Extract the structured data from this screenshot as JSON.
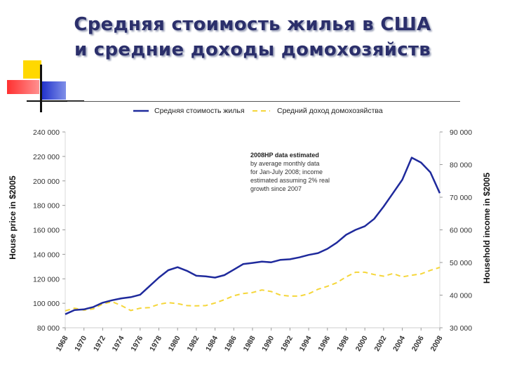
{
  "slide": {
    "title_line1": "Средняя стоимость жилья в США",
    "title_line2": "и средние доходы домохозяйств"
  },
  "colors": {
    "house_line": "#1f2a9c",
    "income_line": "#f5d63a",
    "title": "#2b2f6b",
    "deco_yellow": "#ffd800",
    "deco_red": "#ff4040",
    "deco_blue": "#2233cc"
  },
  "chart_data": {
    "type": "line",
    "title": "",
    "xlabel": "",
    "ylabel": "House price in $2005",
    "y2label": "Household income in $2005",
    "ylim": [
      80000,
      240000
    ],
    "y2lim": [
      30000,
      90000
    ],
    "yticks": [
      "80 000",
      "100 000",
      "120 000",
      "140 000",
      "160 000",
      "180 000",
      "200 000",
      "220 000",
      "240 000"
    ],
    "y2ticks": [
      "30 000",
      "40 000",
      "50 000",
      "60 000",
      "70 000",
      "80 000",
      "90 000"
    ],
    "xlim": [
      1968,
      2008
    ],
    "xticks": [
      "1968",
      "1970",
      "1972",
      "1974",
      "1976",
      "1978",
      "1980",
      "1982",
      "1984",
      "1986",
      "1988",
      "1990",
      "1992",
      "1994",
      "1996",
      "1998",
      "2000",
      "2002",
      "2004",
      "2006",
      "2008"
    ],
    "annotation": [
      "2008HP data estimated",
      "by average monthly data",
      "for Jan-July 2008; income",
      "estimated assuming 2% real",
      "growth since 2007"
    ],
    "series": [
      {
        "name": "Средняя стоимость жилья",
        "axis": "left",
        "style": "solid",
        "x": [
          1968,
          1969,
          1970,
          1971,
          1972,
          1973,
          1974,
          1975,
          1976,
          1977,
          1978,
          1979,
          1980,
          1981,
          1982,
          1983,
          1984,
          1985,
          1986,
          1987,
          1988,
          1989,
          1990,
          1991,
          1992,
          1993,
          1994,
          1995,
          1996,
          1997,
          1998,
          1999,
          2000,
          2001,
          2002,
          2003,
          2004,
          2005,
          2006,
          2007,
          2008
        ],
        "values": [
          91000,
          94500,
          95000,
          97000,
          100500,
          102500,
          104000,
          105000,
          107000,
          114000,
          121000,
          127000,
          129500,
          126500,
          122500,
          122000,
          121000,
          123000,
          127500,
          132000,
          133000,
          134000,
          133500,
          135500,
          136000,
          137500,
          139500,
          141000,
          144500,
          149500,
          156000,
          160000,
          163000,
          169000,
          179000,
          190000,
          201000,
          219000,
          215000,
          207000,
          190000
        ]
      },
      {
        "name": "Средний доход домохозяйства",
        "axis": "right",
        "style": "dashed",
        "x": [
          1968,
          1969,
          1970,
          1971,
          1972,
          1973,
          1974,
          1975,
          1976,
          1977,
          1978,
          1979,
          1980,
          1981,
          1982,
          1983,
          1984,
          1985,
          1986,
          1987,
          1988,
          1989,
          1990,
          1991,
          1992,
          1993,
          1994,
          1995,
          1996,
          1997,
          1998,
          1999,
          2000,
          2001,
          2002,
          2003,
          2004,
          2005,
          2006,
          2007,
          2008
        ],
        "values": [
          35200,
          36000,
          35400,
          35800,
          37300,
          38000,
          36800,
          35300,
          36000,
          36200,
          37200,
          37700,
          37400,
          36800,
          36700,
          36800,
          37600,
          38600,
          39800,
          40500,
          40800,
          41600,
          41100,
          40000,
          39700,
          39700,
          40400,
          41800,
          42700,
          43800,
          45600,
          47000,
          47000,
          46300,
          45800,
          46600,
          45600,
          46100,
          46500,
          47600,
          48500
        ]
      }
    ]
  }
}
